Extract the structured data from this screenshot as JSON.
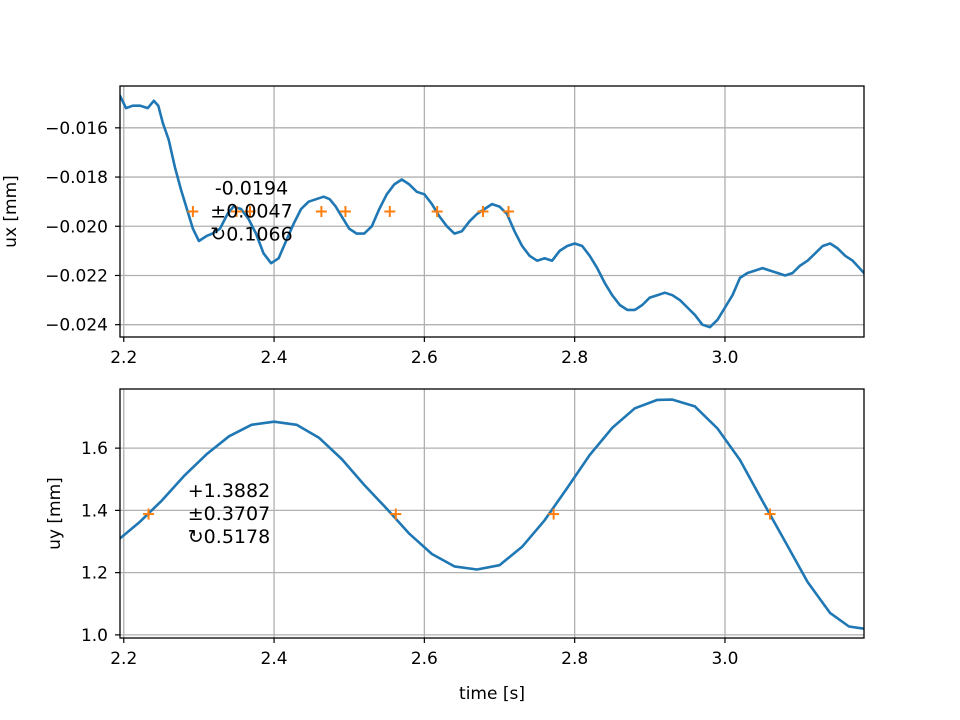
{
  "chart_data": [
    {
      "type": "line",
      "ylabel": "ux [mm]",
      "xlabel": "",
      "xlim": [
        2.195,
        3.185
      ],
      "ylim": [
        -0.0245,
        -0.0143
      ],
      "xticks": [
        "2.2",
        "2.4",
        "2.6",
        "2.8",
        "3.0"
      ],
      "xtick_values": [
        2.2,
        2.4,
        2.6,
        2.8,
        3.0
      ],
      "yticks": [
        "−0.024",
        "−0.022",
        "−0.020",
        "−0.018",
        "−0.016"
      ],
      "ytick_values": [
        -0.024,
        -0.022,
        -0.02,
        -0.018,
        -0.016
      ],
      "grid": true,
      "series": [
        {
          "color": "#1f77b4",
          "x": [
            2.195,
            2.203,
            2.212,
            2.222,
            2.232,
            2.24,
            2.246,
            2.252,
            2.26,
            2.268,
            2.276,
            2.284,
            2.292,
            2.3,
            2.31,
            2.318,
            2.328,
            2.338,
            2.346,
            2.356,
            2.366,
            2.376,
            2.386,
            2.396,
            2.406,
            2.416,
            2.426,
            2.436,
            2.446,
            2.456,
            2.466,
            2.474,
            2.482,
            2.49,
            2.5,
            2.51,
            2.52,
            2.53,
            2.54,
            2.55,
            2.56,
            2.57,
            2.58,
            2.59,
            2.6,
            2.61,
            2.62,
            2.63,
            2.64,
            2.65,
            2.66,
            2.67,
            2.68,
            2.69,
            2.7,
            2.71,
            2.72,
            2.73,
            2.74,
            2.75,
            2.76,
            2.77,
            2.78,
            2.79,
            2.8,
            2.81,
            2.82,
            2.83,
            2.84,
            2.85,
            2.86,
            2.87,
            2.88,
            2.89,
            2.9,
            2.91,
            2.92,
            2.93,
            2.94,
            2.95,
            2.96,
            2.97,
            2.98,
            2.99,
            3.0,
            3.01,
            3.02,
            3.03,
            3.04,
            3.05,
            3.06,
            3.07,
            3.08,
            3.09,
            3.1,
            3.11,
            3.12,
            3.13,
            3.14,
            3.15,
            3.16,
            3.17,
            3.185
          ],
          "y": [
            -0.0147,
            -0.0152,
            -0.0151,
            -0.0151,
            -0.0152,
            -0.0149,
            -0.0151,
            -0.0158,
            -0.0165,
            -0.0176,
            -0.0185,
            -0.0193,
            -0.0201,
            -0.0206,
            -0.0204,
            -0.0203,
            -0.0201,
            -0.0195,
            -0.0192,
            -0.0193,
            -0.0197,
            -0.0203,
            -0.0211,
            -0.0215,
            -0.0213,
            -0.0206,
            -0.0199,
            -0.0193,
            -0.019,
            -0.0189,
            -0.0188,
            -0.0189,
            -0.0192,
            -0.0196,
            -0.0201,
            -0.0203,
            -0.0203,
            -0.02,
            -0.0193,
            -0.0187,
            -0.0183,
            -0.0181,
            -0.0183,
            -0.0186,
            -0.0187,
            -0.0191,
            -0.0196,
            -0.02,
            -0.0203,
            -0.0202,
            -0.0198,
            -0.0195,
            -0.0193,
            -0.0191,
            -0.0192,
            -0.0195,
            -0.0202,
            -0.0208,
            -0.0212,
            -0.0214,
            -0.0213,
            -0.0214,
            -0.021,
            -0.0208,
            -0.0207,
            -0.0208,
            -0.0212,
            -0.0217,
            -0.0223,
            -0.0228,
            -0.0232,
            -0.0234,
            -0.0234,
            -0.0232,
            -0.0229,
            -0.0228,
            -0.0227,
            -0.0228,
            -0.023,
            -0.0233,
            -0.0236,
            -0.024,
            -0.0241,
            -0.0238,
            -0.0233,
            -0.0228,
            -0.0221,
            -0.0219,
            -0.0218,
            -0.0217,
            -0.0218,
            -0.0219,
            -0.022,
            -0.0219,
            -0.0216,
            -0.0214,
            -0.0211,
            -0.0208,
            -0.0207,
            -0.0209,
            -0.0212,
            -0.0214,
            -0.0219
          ]
        }
      ],
      "markers": {
        "color": "#ff7f0e",
        "y": -0.0194,
        "x": [
          2.292,
          2.35,
          2.368,
          2.463,
          2.495,
          2.554,
          2.617,
          2.678,
          2.712
        ]
      },
      "annotation": {
        "x": 2.37,
        "lines": [
          "-0.0194",
          "±0.0047",
          "↻0.1066"
        ]
      }
    },
    {
      "type": "line",
      "ylabel": "uy [mm]",
      "xlabel": "time [s]",
      "xlim": [
        2.195,
        3.185
      ],
      "ylim": [
        0.99,
        1.79
      ],
      "xticks": [
        "2.2",
        "2.4",
        "2.6",
        "2.8",
        "3.0"
      ],
      "xtick_values": [
        2.2,
        2.4,
        2.6,
        2.8,
        3.0
      ],
      "yticks": [
        "1.0",
        "1.2",
        "1.4",
        "1.6"
      ],
      "ytick_values": [
        1.0,
        1.2,
        1.4,
        1.6
      ],
      "grid": true,
      "series": [
        {
          "color": "#1f77b4",
          "x": [
            2.195,
            2.22,
            2.25,
            2.28,
            2.31,
            2.34,
            2.37,
            2.4,
            2.43,
            2.46,
            2.49,
            2.52,
            2.55,
            2.58,
            2.61,
            2.64,
            2.67,
            2.7,
            2.73,
            2.76,
            2.79,
            2.82,
            2.85,
            2.88,
            2.91,
            2.93,
            2.96,
            2.99,
            3.02,
            3.05,
            3.08,
            3.11,
            3.14,
            3.165,
            3.185
          ],
          "y": [
            1.31,
            1.36,
            1.43,
            1.51,
            1.58,
            1.638,
            1.675,
            1.685,
            1.675,
            1.633,
            1.565,
            1.482,
            1.405,
            1.325,
            1.26,
            1.22,
            1.21,
            1.224,
            1.283,
            1.368,
            1.472,
            1.578,
            1.665,
            1.728,
            1.755,
            1.756,
            1.734,
            1.663,
            1.562,
            1.43,
            1.3,
            1.17,
            1.07,
            1.027,
            1.02
          ]
        }
      ],
      "markers": {
        "color": "#ff7f0e",
        "y": 1.3882,
        "x": [
          2.233,
          2.562,
          2.772,
          3.06
        ]
      },
      "annotation": {
        "x": 2.34,
        "lines": [
          "+1.3882",
          "±0.3707",
          "↻0.5178"
        ]
      }
    }
  ]
}
